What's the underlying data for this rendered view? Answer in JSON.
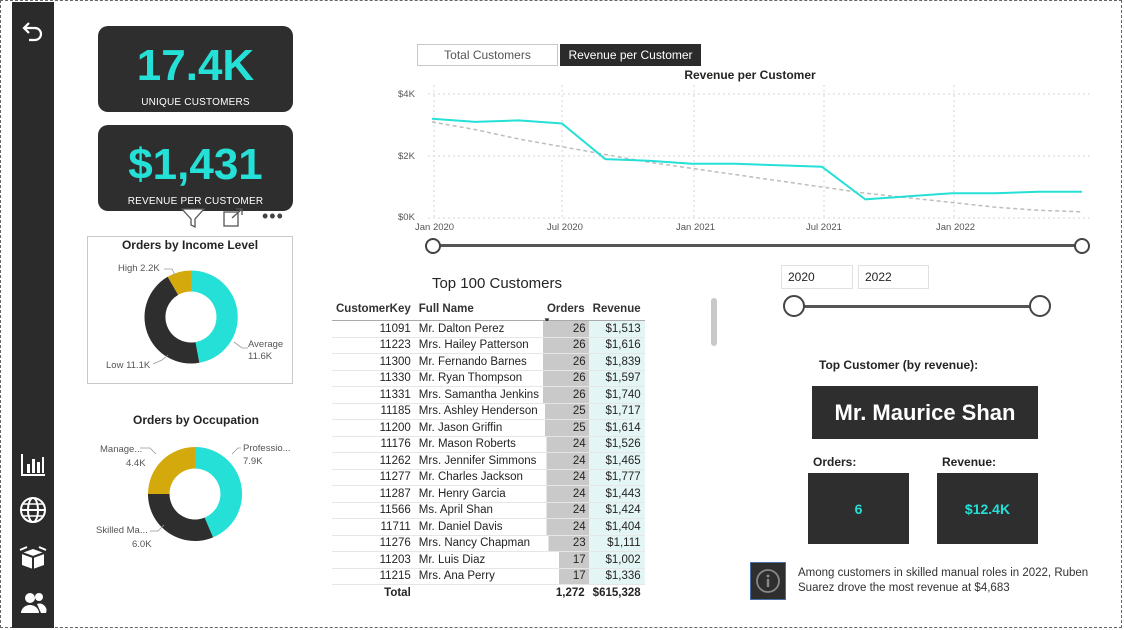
{
  "kpis": {
    "customers_value": "17.4K",
    "customers_label": "UNIQUE CUSTOMERS",
    "revenue_value": "$1,431",
    "revenue_label": "REVENUE PER CUSTOMER"
  },
  "income_chart": {
    "title": "Orders by Income Level",
    "labels": {
      "high": "High 2.2K",
      "average_1": "Average",
      "average_2": "11.6K",
      "low": "Low 11.1K"
    },
    "chart_data": {
      "type": "pie",
      "categories": [
        "Average",
        "Low",
        "High"
      ],
      "values": [
        11.6,
        11.1,
        2.2
      ],
      "unit": "K"
    }
  },
  "occupation_chart": {
    "title": "Orders by Occupation",
    "labels": {
      "prof_1": "Professio...",
      "prof_2": "7.9K",
      "mgmt_1": "Manage...",
      "mgmt_2": "4.4K",
      "skilled_1": "Skilled Ma...",
      "skilled_2": "6.0K"
    },
    "chart_data": {
      "type": "pie",
      "categories": [
        "Professional",
        "Skilled Manual",
        "Management"
      ],
      "values": [
        7.9,
        6.0,
        4.4
      ],
      "unit": "K"
    }
  },
  "tabs": {
    "total_customers": "Total Customers",
    "revenue_per_customer": "Revenue per Customer"
  },
  "line_chart": {
    "title": "Revenue per Customer",
    "y_ticks": [
      "$4K",
      "$2K",
      "$0K"
    ],
    "x_ticks": [
      "Jan 2020",
      "Jul 2020",
      "Jan 2021",
      "Jul 2021",
      "Jan 2022"
    ],
    "chart_data": {
      "type": "line",
      "x": [
        "Jan 2020",
        "Mar 2020",
        "May 2020",
        "Jul 2020",
        "Sep 2020",
        "Nov 2020",
        "Jan 2021",
        "Mar 2021",
        "May 2021",
        "Jul 2021",
        "Sep 2021",
        "Nov 2021",
        "Jan 2022",
        "Mar 2022",
        "May 2022",
        "Jun 2022"
      ],
      "series": [
        {
          "values": [
            3200,
            3100,
            3150,
            3050,
            1900,
            1850,
            1750,
            1750,
            1700,
            1650,
            600,
            700,
            800,
            800,
            850,
            850
          ]
        },
        {
          "values": [
            3100,
            2850,
            2550,
            2300,
            2050,
            1800,
            1600,
            1400,
            1200,
            1000,
            800,
            650,
            500,
            350,
            250,
            200
          ]
        }
      ],
      "ylim": [
        0,
        4000
      ],
      "grid": true
    }
  },
  "table": {
    "title": "Top 100 Customers",
    "headers": {
      "key": "CustomerKey",
      "name": "Full Name",
      "orders": "Orders",
      "revenue": "Revenue"
    },
    "rows": [
      {
        "key": "11091",
        "name": "Mr. Dalton Perez",
        "orders": "26",
        "revenue": "$1,513"
      },
      {
        "key": "11223",
        "name": "Mrs. Hailey Patterson",
        "orders": "26",
        "revenue": "$1,616"
      },
      {
        "key": "11300",
        "name": "Mr. Fernando Barnes",
        "orders": "26",
        "revenue": "$1,839"
      },
      {
        "key": "11330",
        "name": "Mr. Ryan Thompson",
        "orders": "26",
        "revenue": "$1,597"
      },
      {
        "key": "11331",
        "name": "Mrs. Samantha Jenkins",
        "orders": "26",
        "revenue": "$1,740"
      },
      {
        "key": "11185",
        "name": "Mrs. Ashley Henderson",
        "orders": "25",
        "revenue": "$1,717"
      },
      {
        "key": "11200",
        "name": "Mr. Jason Griffin",
        "orders": "25",
        "revenue": "$1,614"
      },
      {
        "key": "11176",
        "name": "Mr. Mason Roberts",
        "orders": "24",
        "revenue": "$1,526"
      },
      {
        "key": "11262",
        "name": "Mrs. Jennifer Simmons",
        "orders": "24",
        "revenue": "$1,465"
      },
      {
        "key": "11277",
        "name": "Mr. Charles Jackson",
        "orders": "24",
        "revenue": "$1,777"
      },
      {
        "key": "11287",
        "name": "Mr. Henry Garcia",
        "orders": "24",
        "revenue": "$1,443"
      },
      {
        "key": "11566",
        "name": "Ms. April Shan",
        "orders": "24",
        "revenue": "$1,424"
      },
      {
        "key": "11711",
        "name": "Mr. Daniel Davis",
        "orders": "24",
        "revenue": "$1,404"
      },
      {
        "key": "11276",
        "name": "Mrs. Nancy Chapman",
        "orders": "23",
        "revenue": "$1,111"
      },
      {
        "key": "11203",
        "name": "Mr. Luis Diaz",
        "orders": "17",
        "revenue": "$1,002"
      },
      {
        "key": "11215",
        "name": "Mrs. Ana Perry",
        "orders": "17",
        "revenue": "$1,336"
      }
    ],
    "total": {
      "label": "Total",
      "orders": "1,272",
      "revenue": "$615,328"
    }
  },
  "date_filter": {
    "start": "2020",
    "end": "2022"
  },
  "top_customer": {
    "heading": "Top Customer (by revenue):",
    "name": "Mr. Maurice Shan",
    "orders_label": "Orders:",
    "orders_value": "6",
    "revenue_label": "Revenue:",
    "revenue_value": "$12.4K"
  },
  "insight": {
    "text": "Among customers in skilled manual roles in 2022, Ruben Suarez drove the most revenue at $4,683"
  },
  "colors": {
    "accent": "#24e0d6",
    "dark": "#2e2e2e",
    "gold": "#d4a90c",
    "trend": "#bdbdbd"
  },
  "icons": [
    "back-arrow-icon",
    "bar-chart-icon",
    "globe-icon",
    "box-icon",
    "users-icon",
    "filter-icon",
    "expand-icon",
    "more-options-icon",
    "info-icon"
  ]
}
